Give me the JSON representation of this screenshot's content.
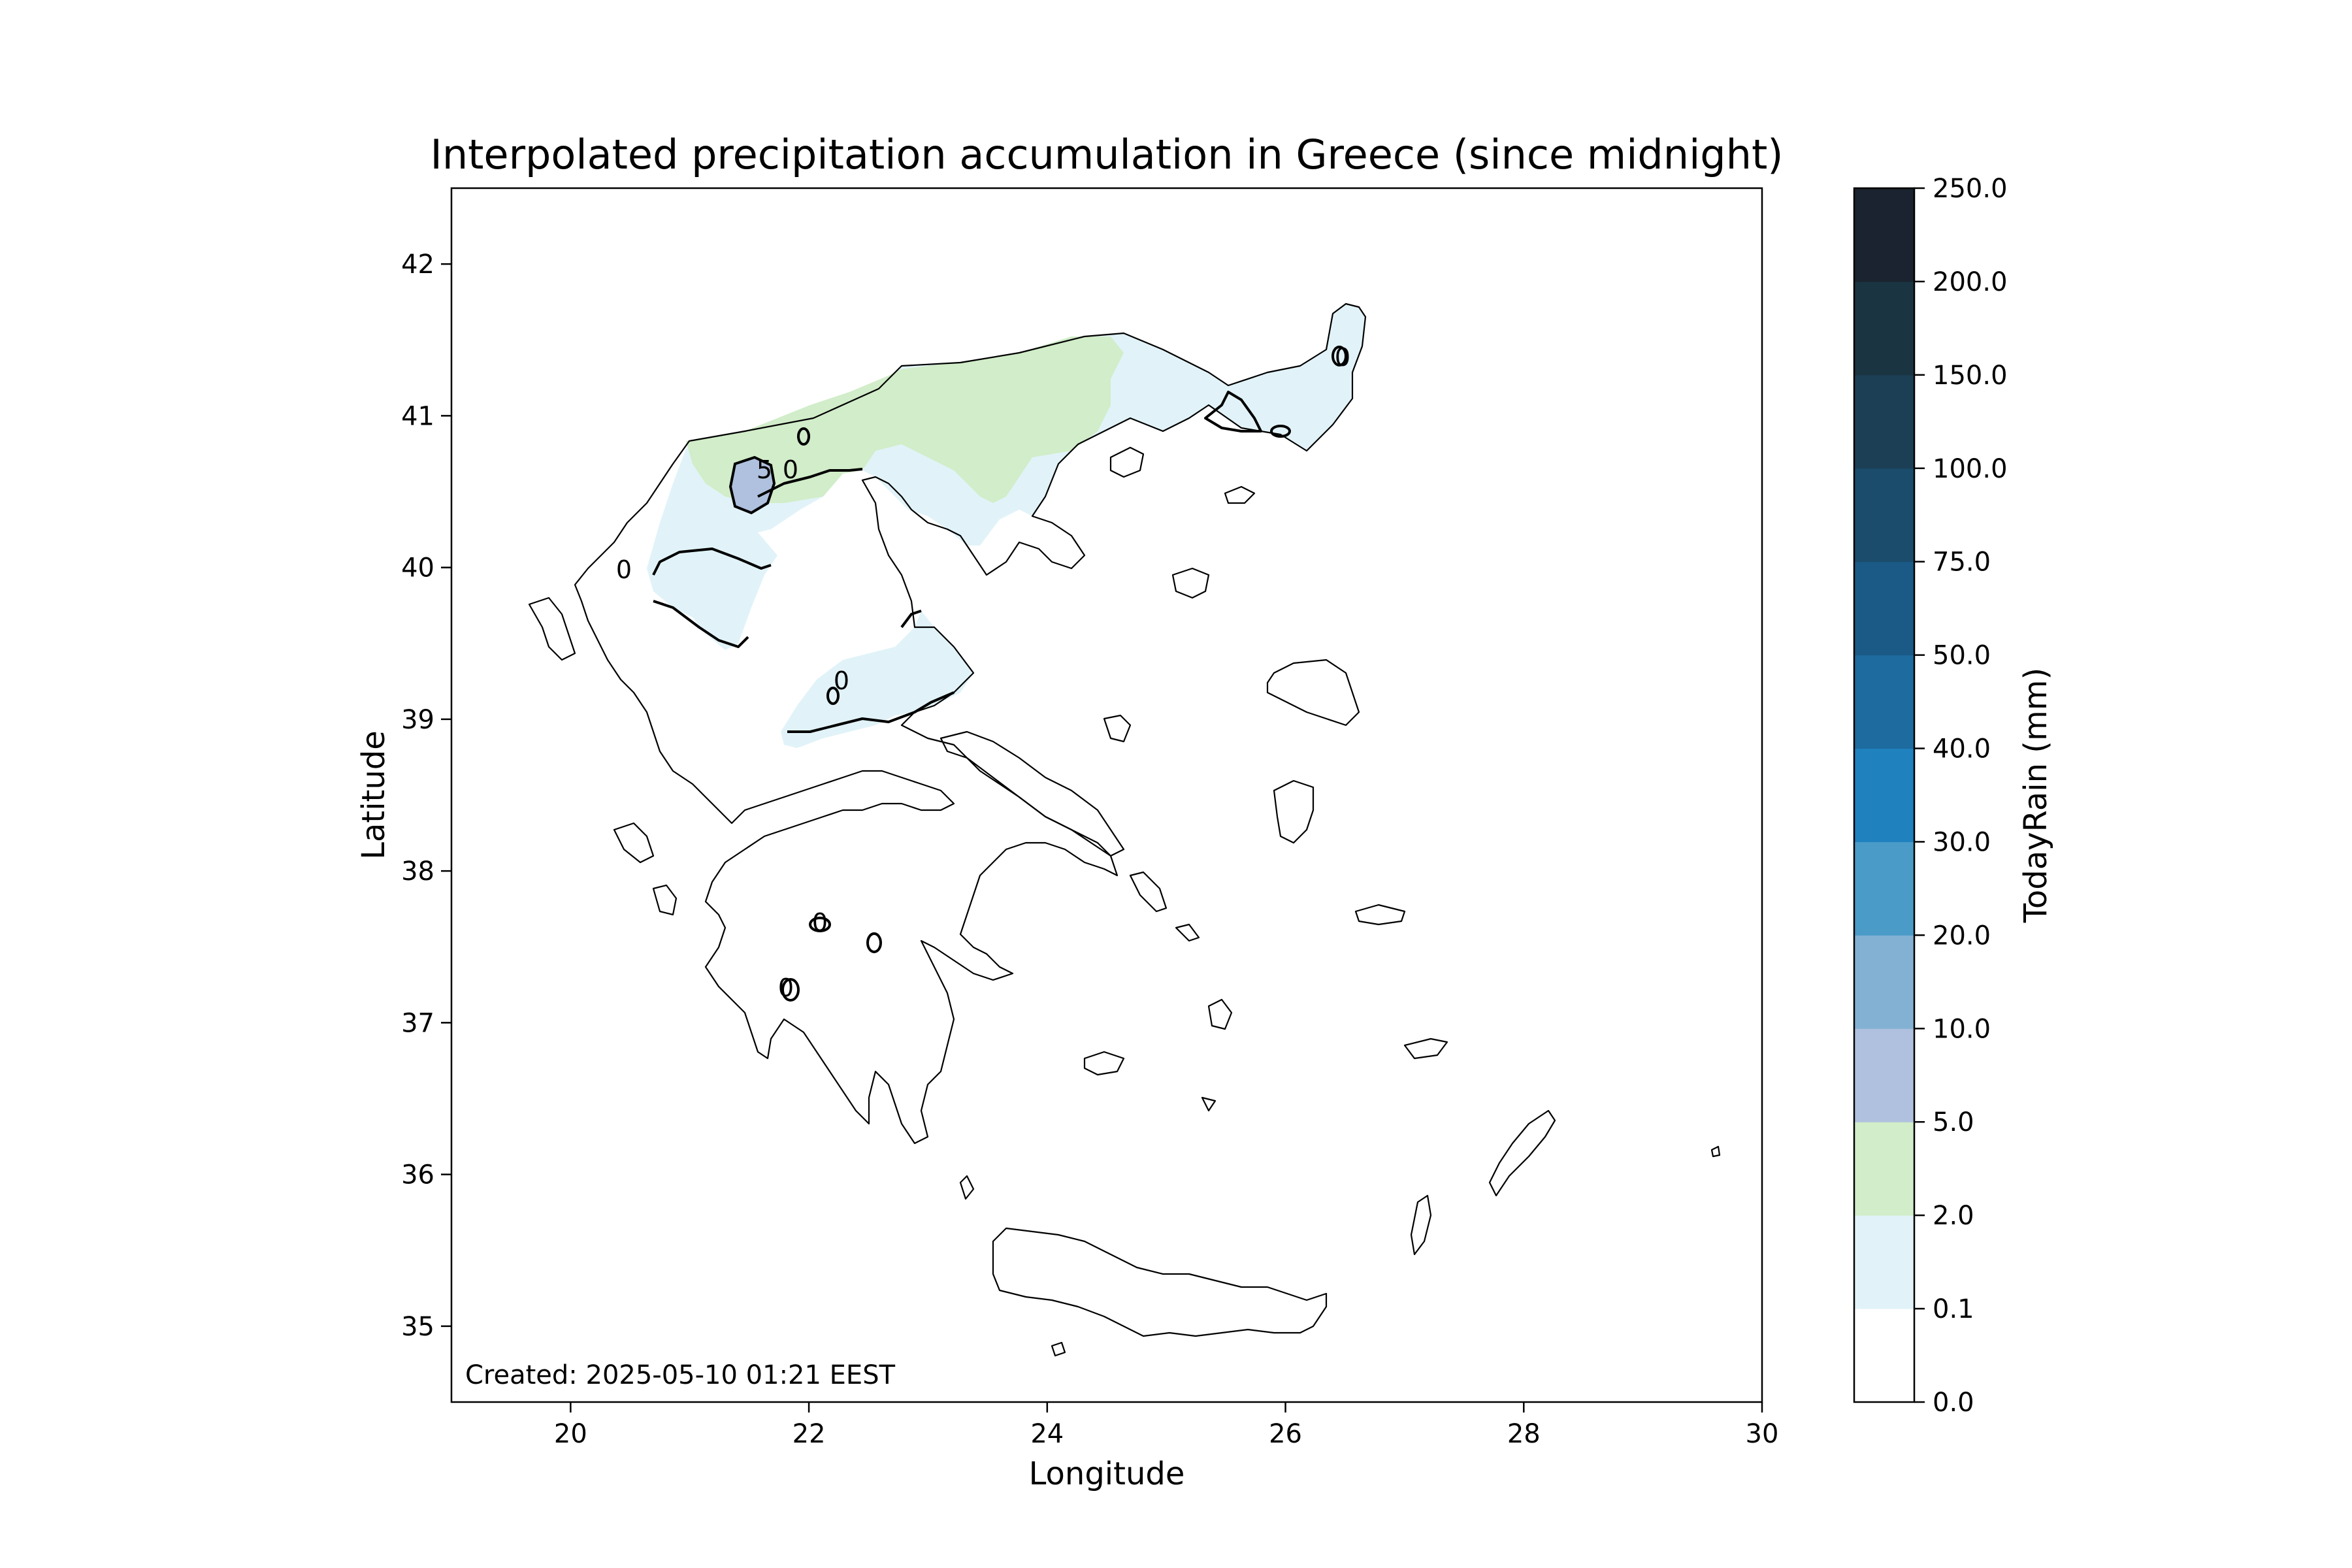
{
  "title": "Interpolated precipitation accumulation in Greece (since midnight)",
  "xlabel": "Longitude",
  "ylabel": "Latitude",
  "created_text": "Created: 2025-05-10 01:21 EEST",
  "colorbar": {
    "label": "TodayRain (mm)",
    "ticks": [
      "0.0",
      "0.1",
      "2.0",
      "5.0",
      "10.0",
      "20.0",
      "30.0",
      "40.0",
      "50.0",
      "75.0",
      "100.0",
      "150.0",
      "200.0",
      "250.0"
    ],
    "colors": [
      "#ffffff",
      "#e1f3f8",
      "#d1edc9",
      "#afc1de",
      "#83b1d3",
      "#4a9bc7",
      "#1f81be",
      "#1d6b9f",
      "#1b5a86",
      "#1b4c6c",
      "#1c3f56",
      "#1b3442",
      "#1a232f"
    ]
  },
  "chart_data": {
    "type": "heatmap",
    "title": "Interpolated precipitation accumulation in Greece (since midnight)",
    "xlabel": "Longitude",
    "ylabel": "Latitude",
    "xlim": [
      19,
      30
    ],
    "ylim": [
      34.5,
      42.5
    ],
    "xticks": [
      20,
      22,
      24,
      26,
      28,
      30
    ],
    "yticks": [
      35,
      36,
      37,
      38,
      39,
      40,
      41,
      42
    ],
    "contour_labels": [
      "5",
      "0",
      "0",
      "0",
      "0",
      "0",
      "0"
    ],
    "color_scale_bounds_mm": [
      0.0,
      0.1,
      2.0,
      5.0,
      10.0,
      20.0,
      30.0,
      40.0,
      50.0,
      75.0,
      100.0,
      150.0,
      200.0,
      250.0
    ]
  }
}
